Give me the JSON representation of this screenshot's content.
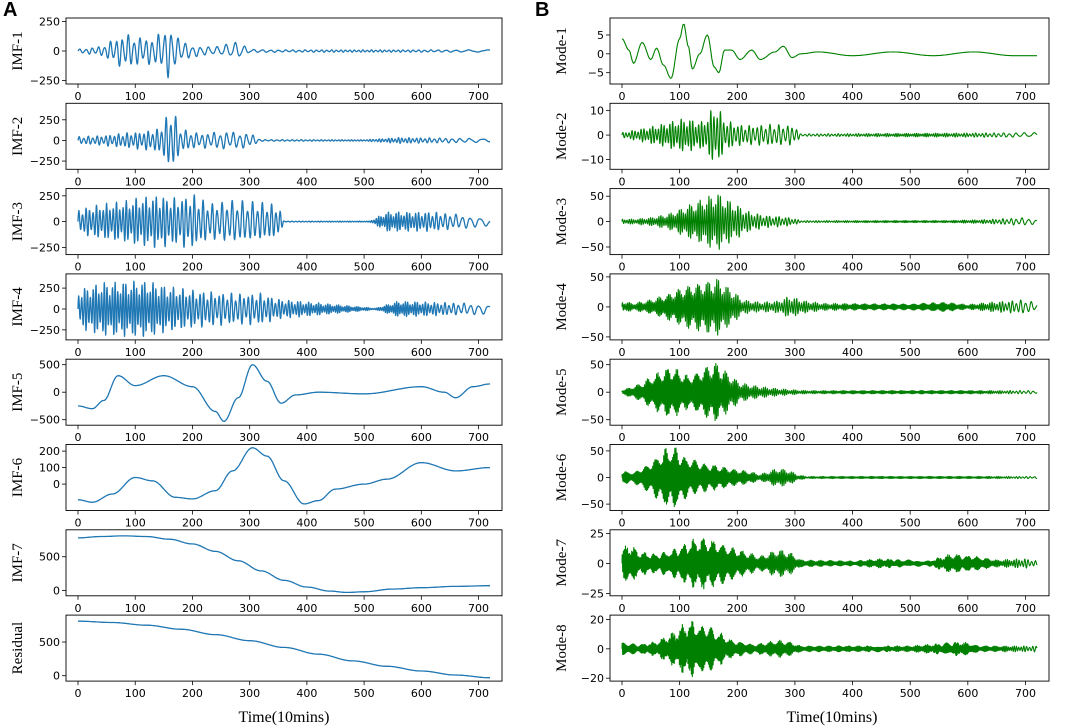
{
  "chart_data": [
    {
      "type": "line",
      "panel": "A",
      "title": "",
      "xlabel": "Time(10mins)",
      "x_range": [
        0,
        720
      ],
      "x_ticks": [
        0,
        100,
        200,
        300,
        400,
        500,
        600,
        700
      ],
      "color": "#1f77b4",
      "subplots": [
        {
          "ylabel": "IMF-1",
          "y_ticks": [
            -250,
            0,
            250
          ],
          "ylim": [
            -280,
            280
          ],
          "envelope": {
            "x": [
              0,
              40,
              80,
              100,
              120,
              140,
              160,
              175,
              200,
              240,
              280,
              300,
              350,
              720
            ],
            "amp": [
              15,
              40,
              150,
              130,
              110,
              140,
              240,
              110,
              50,
              35,
              80,
              15,
              10,
              10
            ]
          }
        },
        {
          "ylabel": "IMF-2",
          "y_ticks": [
            -250,
            0,
            250
          ],
          "ylim": [
            -350,
            450
          ],
          "envelope": {
            "x": [
              0,
              40,
              80,
              110,
              140,
              158,
              165,
              180,
              210,
              260,
              300,
              320,
              500,
              560,
              720
            ],
            "amp": [
              45,
              60,
              90,
              110,
              140,
              320,
              390,
              140,
              90,
              110,
              90,
              10,
              8,
              35,
              25
            ]
          }
        },
        {
          "ylabel": "IMF-3",
          "y_ticks": [
            -250,
            0,
            250
          ],
          "ylim": [
            -320,
            320
          ],
          "envelope": {
            "x": [
              0,
              40,
              80,
              110,
              140,
              170,
              200,
              230,
              270,
              320,
              350,
              360,
              510,
              540,
              620,
              720
            ],
            "amp": [
              120,
              170,
              200,
              240,
              260,
              230,
              270,
              180,
              210,
              190,
              160,
              5,
              5,
              95,
              95,
              40
            ]
          }
        },
        {
          "ylabel": "IMF-4",
          "y_ticks": [
            -250,
            0,
            250
          ],
          "ylim": [
            -370,
            420
          ],
          "envelope": {
            "x": [
              0,
              40,
              80,
              120,
              160,
              210,
              270,
              320,
              350,
              520,
              560,
              720
            ],
            "amp": [
              230,
              320,
              330,
              340,
              270,
              220,
              190,
              190,
              120,
              8,
              95,
              60
            ]
          }
        },
        {
          "ylabel": "IMF-5",
          "y_ticks": [
            -500,
            0,
            500
          ],
          "ylim": [
            -600,
            600
          ],
          "points": [
            [
              0,
              -250
            ],
            [
              25,
              -300
            ],
            [
              45,
              -150
            ],
            [
              70,
              300
            ],
            [
              100,
              120
            ],
            [
              150,
              300
            ],
            [
              200,
              100
            ],
            [
              240,
              -350
            ],
            [
              255,
              -530
            ],
            [
              280,
              -100
            ],
            [
              305,
              500
            ],
            [
              330,
              200
            ],
            [
              355,
              -200
            ],
            [
              380,
              -50
            ],
            [
              420,
              0
            ],
            [
              500,
              -30
            ],
            [
              600,
              100
            ],
            [
              640,
              0
            ],
            [
              660,
              -100
            ],
            [
              690,
              100
            ],
            [
              720,
              150
            ]
          ]
        },
        {
          "ylabel": "IMF-6",
          "y_ticks": [
            0,
            100,
            200
          ],
          "ylim": [
            -160,
            240
          ],
          "points": [
            [
              0,
              -95
            ],
            [
              25,
              -110
            ],
            [
              60,
              -60
            ],
            [
              100,
              40
            ],
            [
              130,
              20
            ],
            [
              170,
              -80
            ],
            [
              200,
              -90
            ],
            [
              240,
              -40
            ],
            [
              270,
              80
            ],
            [
              305,
              220
            ],
            [
              330,
              170
            ],
            [
              360,
              20
            ],
            [
              395,
              -120
            ],
            [
              420,
              -100
            ],
            [
              450,
              -30
            ],
            [
              500,
              0
            ],
            [
              540,
              30
            ],
            [
              600,
              130
            ],
            [
              660,
              80
            ],
            [
              720,
              100
            ]
          ]
        },
        {
          "ylabel": "IMF-7",
          "y_ticks": [
            0,
            500
          ],
          "ylim": [
            -80,
            900
          ],
          "points": [
            [
              0,
              780
            ],
            [
              40,
              800
            ],
            [
              80,
              810
            ],
            [
              120,
              800
            ],
            [
              160,
              760
            ],
            [
              200,
              690
            ],
            [
              240,
              580
            ],
            [
              280,
              440
            ],
            [
              320,
              290
            ],
            [
              360,
              150
            ],
            [
              400,
              50
            ],
            [
              440,
              -10
            ],
            [
              470,
              -30
            ],
            [
              500,
              -20
            ],
            [
              550,
              20
            ],
            [
              600,
              40
            ],
            [
              660,
              60
            ],
            [
              720,
              70
            ]
          ]
        },
        {
          "ylabel": "Residual",
          "y_ticks": [
            0,
            500
          ],
          "ylim": [
            -80,
            900
          ],
          "points": [
            [
              0,
              810
            ],
            [
              60,
              790
            ],
            [
              120,
              750
            ],
            [
              180,
              690
            ],
            [
              240,
              610
            ],
            [
              300,
              520
            ],
            [
              360,
              420
            ],
            [
              420,
              320
            ],
            [
              480,
              220
            ],
            [
              540,
              140
            ],
            [
              600,
              70
            ],
            [
              660,
              10
            ],
            [
              720,
              -30
            ]
          ]
        }
      ]
    },
    {
      "type": "line",
      "panel": "B",
      "title": "",
      "xlabel": "Time(10mins)",
      "x_range": [
        0,
        720
      ],
      "x_ticks": [
        0,
        100,
        200,
        300,
        400,
        500,
        600,
        700
      ],
      "color": "#008000",
      "subplots": [
        {
          "ylabel": "Mode-1",
          "y_ticks": [
            -5,
            0,
            5
          ],
          "ylim": [
            -8,
            9.5
          ],
          "points": [
            [
              0,
              4
            ],
            [
              12,
              1
            ],
            [
              20,
              -2.5
            ],
            [
              35,
              3
            ],
            [
              50,
              -1.5
            ],
            [
              60,
              1.5
            ],
            [
              72,
              -3
            ],
            [
              85,
              -6.5
            ],
            [
              100,
              4
            ],
            [
              107,
              8
            ],
            [
              115,
              2
            ],
            [
              122,
              -4
            ],
            [
              135,
              0
            ],
            [
              148,
              5
            ],
            [
              160,
              -3.5
            ],
            [
              168,
              -5
            ],
            [
              178,
              1
            ],
            [
              190,
              1
            ],
            [
              205,
              -1.5
            ],
            [
              225,
              1
            ],
            [
              240,
              -1.5
            ],
            [
              265,
              0.5
            ],
            [
              280,
              2
            ],
            [
              295,
              -1
            ],
            [
              310,
              0
            ],
            [
              340,
              0.5
            ],
            [
              400,
              -0.5
            ],
            [
              470,
              0.5
            ],
            [
              540,
              -0.5
            ],
            [
              610,
              0.5
            ],
            [
              680,
              -0.5
            ],
            [
              720,
              -0.5
            ]
          ]
        },
        {
          "ylabel": "Mode-2",
          "y_ticks": [
            -10,
            0,
            10
          ],
          "ylim": [
            -14,
            13
          ],
          "envelope": {
            "x": [
              0,
              30,
              60,
              90,
              110,
              140,
              157,
              165,
              180,
              210,
              260,
              300,
              310,
              720
            ],
            "amp": [
              1,
              2.5,
              4,
              6,
              7,
              5.5,
              11,
              12,
              6,
              4,
              4.5,
              4,
              0.5,
              1
            ]
          }
        },
        {
          "ylabel": "Mode-3",
          "y_ticks": [
            -50,
            0,
            50
          ],
          "ylim": [
            -65,
            65
          ],
          "envelope": {
            "x": [
              0,
              20,
              50,
              80,
              110,
              140,
              165,
              190,
              220,
              250,
              280,
              300,
              310,
              560,
              630,
              700,
              720
            ],
            "amp": [
              5,
              5,
              8,
              15,
              30,
              45,
              58,
              40,
              20,
              12,
              10,
              6,
              2,
              2,
              4,
              8,
              4
            ]
          }
        },
        {
          "ylabel": "Mode-4",
          "y_ticks": [
            -50,
            0,
            50
          ],
          "ylim": [
            -55,
            55
          ],
          "envelope": {
            "x": [
              0,
              20,
              50,
              80,
              110,
              140,
              165,
              190,
              210,
              240,
              270,
              290,
              320,
              350,
              500,
              560,
              600,
              640,
              700,
              720
            ],
            "amp": [
              10,
              6,
              12,
              22,
              35,
              42,
              48,
              30,
              12,
              8,
              10,
              18,
              10,
              6,
              5,
              8,
              4,
              8,
              12,
              6
            ]
          }
        },
        {
          "ylabel": "Mode-5",
          "y_ticks": [
            -50,
            0,
            50
          ],
          "ylim": [
            -60,
            60
          ],
          "envelope": {
            "x": [
              0,
              30,
              60,
              85,
              100,
              115,
              130,
              145,
              165,
              185,
              205,
              230,
              260,
              290,
              320,
              720
            ],
            "amp": [
              4,
              15,
              35,
              48,
              40,
              30,
              38,
              50,
              55,
              35,
              18,
              12,
              8,
              5,
              3,
              3
            ]
          }
        },
        {
          "ylabel": "Mode-6",
          "y_ticks": [
            -50,
            0,
            50
          ],
          "ylim": [
            -62,
            62
          ],
          "envelope": {
            "x": [
              0,
              20,
              50,
              75,
              90,
              110,
              140,
              170,
              200,
              220,
              240,
              270,
              290,
              305,
              320,
              500,
              720
            ],
            "amp": [
              12,
              10,
              30,
              55,
              60,
              40,
              28,
              22,
              15,
              12,
              6,
              18,
              14,
              5,
              2,
              2,
              2
            ]
          }
        },
        {
          "ylabel": "Mode-7",
          "y_ticks": [
            -25,
            0,
            25
          ],
          "ylim": [
            -27,
            28
          ],
          "envelope": {
            "x": [
              0,
              10,
              30,
              60,
              90,
              120,
              140,
              170,
              200,
              240,
              270,
              290,
              310,
              400,
              450,
              530,
              570,
              600,
              650,
              700,
              720
            ],
            "amp": [
              10,
              18,
              10,
              8,
              12,
              20,
              22,
              18,
              12,
              6,
              12,
              10,
              3,
              2,
              4,
              2,
              8,
              7,
              3,
              4,
              2
            ]
          }
        },
        {
          "ylabel": "Mode-8",
          "y_ticks": [
            -20,
            0,
            20
          ],
          "ylim": [
            -22,
            23
          ],
          "envelope": {
            "x": [
              0,
              30,
              60,
              90,
              115,
              135,
              160,
              190,
              230,
              270,
              290,
              310,
              400,
              500,
              560,
              590,
              620,
              720
            ],
            "amp": [
              4,
              3,
              5,
              12,
              20,
              18,
              14,
              6,
              3,
              6,
              5,
              2,
              2,
              2,
              4,
              5,
              2,
              2
            ]
          }
        }
      ]
    }
  ]
}
